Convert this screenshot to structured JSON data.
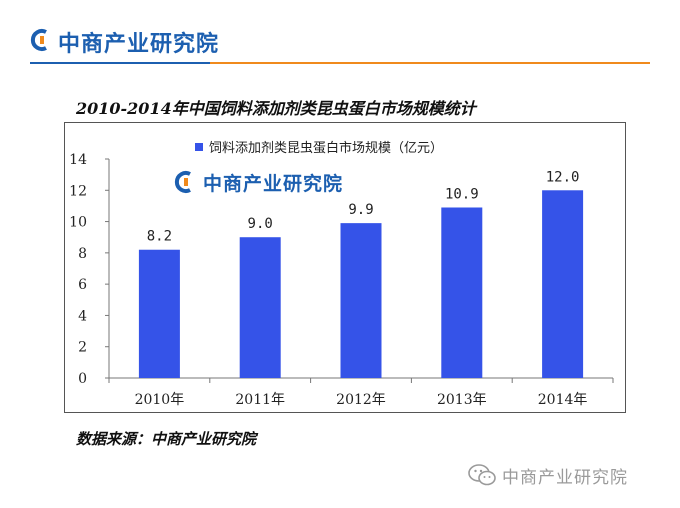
{
  "header": {
    "logo_text": "中商产业研究院"
  },
  "chart_data": {
    "type": "bar",
    "title": "2010-2014年中国饲料添加剂类昆虫蛋白市场规模统计",
    "categories": [
      "2010年",
      "2011年",
      "2012年",
      "2013年",
      "2014年"
    ],
    "series": [
      {
        "name": "饲料添加剂类昆虫蛋白市场规模（亿元）",
        "values": [
          8.2,
          9.0,
          9.9,
          10.9,
          12.0
        ]
      }
    ],
    "data_labels": [
      "8.2",
      "9.0",
      "9.9",
      "10.9",
      "12.0"
    ],
    "y_ticks": [
      0,
      2,
      4,
      6,
      8,
      10,
      12,
      14
    ],
    "ylim": [
      0,
      14
    ],
    "grid": false,
    "legend_position": "top-center",
    "bar_color": "#3553e8",
    "watermark_text": "中商产业研究院"
  },
  "source_text": "数据来源：中商产业研究院",
  "footer_watermark": "中商产业研究院",
  "colors": {
    "brand_blue": "#1c5fb0",
    "brand_orange": "#f08a1c"
  }
}
